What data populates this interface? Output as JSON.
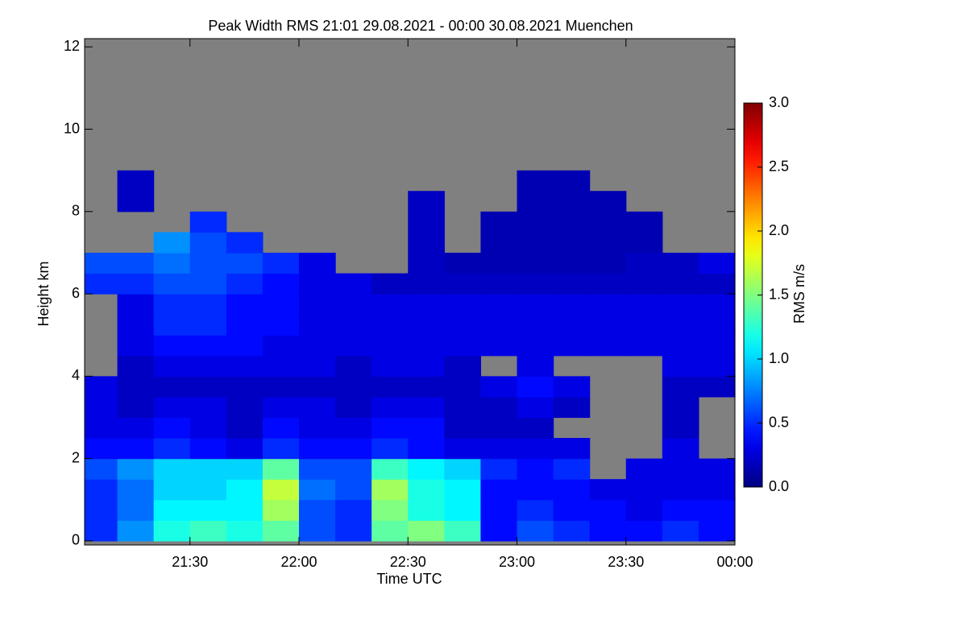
{
  "chart_data": {
    "type": "heatmap",
    "title": "Peak Width RMS   21:01 29.08.2021 - 00:00 30.08.2021 Muenchen",
    "xlabel": "Time UTC",
    "ylabel": "Height km",
    "colorbar_label": "RMS m/s",
    "colormap": "jet",
    "missing_color": "#808080",
    "xlim": [
      "21:01",
      "00:00"
    ],
    "xticks": [
      "21:30",
      "22:00",
      "22:30",
      "23:00",
      "23:30",
      "00:00"
    ],
    "ylim": [
      -0.1,
      12.2
    ],
    "yticks": [
      0,
      2,
      4,
      6,
      8,
      10,
      12
    ],
    "zlim": [
      0,
      3
    ],
    "zticks": [
      {
        "value": 0,
        "label": "0.0"
      },
      {
        "value": 0.5,
        "label": "0.5"
      },
      {
        "value": 1,
        "label": "1.0"
      },
      {
        "value": 1.5,
        "label": "1.5"
      },
      {
        "value": 2,
        "label": "2.0"
      },
      {
        "value": 2.5,
        "label": "2.5"
      },
      {
        "value": 3,
        "label": "3.0"
      }
    ],
    "x": [
      "21:01",
      "21:10",
      "21:20",
      "21:30",
      "21:40",
      "21:50",
      "22:00",
      "22:10",
      "22:20",
      "22:30",
      "22:40",
      "22:50",
      "23:00",
      "23:10",
      "23:20",
      "23:30",
      "23:40",
      "23:50",
      "00:00"
    ],
    "y": [
      0,
      0.5,
      1,
      1.5,
      2,
      2.5,
      3,
      3.5,
      4,
      4.5,
      5,
      5.5,
      6,
      6.5,
      7,
      7.5,
      8,
      8.5,
      9
    ],
    "z": [
      [
        0.5,
        0.8,
        1.2,
        1.3,
        1.2,
        1.4,
        0.6,
        0.5,
        1.4,
        1.5,
        1.3,
        0.4,
        0.6,
        0.5,
        0.4,
        0.4,
        0.5,
        0.4
      ],
      [
        0.5,
        0.7,
        1.1,
        1.1,
        1.1,
        1.6,
        0.6,
        0.5,
        1.5,
        1.2,
        1.1,
        0.4,
        0.5,
        0.4,
        0.4,
        0.3,
        0.4,
        0.4
      ],
      [
        0.5,
        0.7,
        1.0,
        1.0,
        1.1,
        1.7,
        0.7,
        0.6,
        1.6,
        1.2,
        1.1,
        0.4,
        0.4,
        0.4,
        0.3,
        0.3,
        0.3,
        0.3
      ],
      [
        0.6,
        0.8,
        1.0,
        1.0,
        1.0,
        1.4,
        0.6,
        0.6,
        1.3,
        1.1,
        1.0,
        0.5,
        0.4,
        0.5,
        null,
        0.3,
        0.3,
        0.3
      ],
      [
        0.4,
        0.4,
        0.5,
        0.4,
        0.3,
        0.5,
        0.4,
        0.4,
        0.5,
        0.4,
        0.3,
        0.3,
        0.3,
        0.3,
        null,
        null,
        0.3,
        null
      ],
      [
        0.3,
        0.3,
        0.4,
        0.3,
        0.2,
        0.4,
        0.3,
        0.3,
        0.4,
        0.4,
        0.2,
        0.2,
        0.2,
        null,
        null,
        null,
        0.2,
        null
      ],
      [
        0.3,
        0.2,
        0.3,
        0.3,
        0.2,
        0.3,
        0.3,
        0.2,
        0.3,
        0.3,
        0.2,
        0.2,
        0.3,
        0.2,
        null,
        null,
        0.2,
        null
      ],
      [
        0.3,
        0.2,
        0.2,
        0.2,
        0.2,
        0.2,
        0.2,
        0.2,
        0.2,
        0.2,
        0.2,
        0.3,
        0.4,
        0.3,
        null,
        null,
        0.2,
        0.2
      ],
      [
        null,
        0.2,
        0.3,
        0.3,
        0.3,
        0.3,
        0.3,
        0.2,
        0.3,
        0.3,
        0.2,
        null,
        0.3,
        null,
        null,
        null,
        0.3,
        0.3
      ],
      [
        null,
        0.3,
        0.4,
        0.4,
        0.4,
        0.3,
        0.3,
        0.3,
        0.3,
        0.3,
        0.3,
        0.3,
        0.3,
        0.3,
        0.3,
        0.3,
        0.3,
        0.3
      ],
      [
        null,
        0.3,
        0.5,
        0.5,
        0.4,
        0.4,
        0.3,
        0.3,
        0.3,
        0.3,
        0.3,
        0.3,
        0.3,
        0.3,
        0.3,
        0.3,
        0.3,
        0.3
      ],
      [
        null,
        0.3,
        0.5,
        0.5,
        0.4,
        0.4,
        0.3,
        0.3,
        0.3,
        0.3,
        0.3,
        0.3,
        0.3,
        0.3,
        0.3,
        0.3,
        0.3,
        0.3
      ],
      [
        0.5,
        0.5,
        0.6,
        0.6,
        0.5,
        0.4,
        0.3,
        0.3,
        0.2,
        0.2,
        0.2,
        0.2,
        0.2,
        0.2,
        0.2,
        0.2,
        0.2,
        0.2
      ],
      [
        0.6,
        0.6,
        0.7,
        0.6,
        0.6,
        0.5,
        0.3,
        null,
        null,
        0.2,
        0.15,
        0.15,
        0.15,
        0.15,
        0.15,
        0.2,
        0.2,
        0.3
      ],
      [
        null,
        null,
        0.8,
        0.6,
        0.5,
        null,
        null,
        null,
        null,
        0.2,
        null,
        0.15,
        0.15,
        0.15,
        0.15,
        0.15,
        null,
        null
      ],
      [
        null,
        null,
        null,
        0.5,
        null,
        null,
        null,
        null,
        null,
        0.2,
        null,
        0.15,
        0.15,
        0.15,
        0.15,
        0.15,
        null,
        null
      ],
      [
        null,
        0.2,
        null,
        null,
        null,
        null,
        null,
        null,
        null,
        0.2,
        null,
        null,
        0.15,
        0.15,
        0.15,
        null,
        null,
        null
      ],
      [
        null,
        0.2,
        null,
        null,
        null,
        null,
        null,
        null,
        null,
        null,
        null,
        null,
        0.15,
        0.15,
        null,
        null,
        null,
        null
      ]
    ]
  }
}
